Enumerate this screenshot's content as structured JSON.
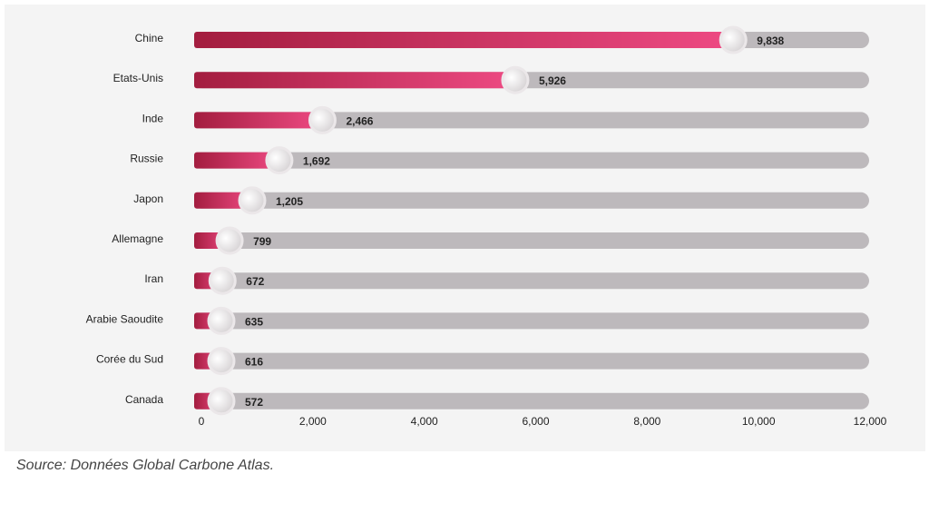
{
  "chart_data": {
    "type": "bar",
    "orientation": "horizontal",
    "categories": [
      "Chine",
      "Etats-Unis",
      "Inde",
      "Russie",
      "Japon",
      "Allemagne",
      "Iran",
      "Arabie Saoudite",
      "Corée du Sud",
      "Canada"
    ],
    "values": [
      9838,
      5926,
      2466,
      1692,
      1205,
      799,
      672,
      635,
      616,
      572
    ],
    "value_labels": [
      "9,838",
      "5,926",
      "2,466",
      "1,692",
      "1,205",
      "799",
      "672",
      "635",
      "616",
      "572"
    ],
    "xlim": [
      0,
      12000
    ],
    "xticks": [
      0,
      2000,
      4000,
      6000,
      8000,
      10000,
      12000
    ],
    "xtick_labels": [
      "0",
      "2,000",
      "4,000",
      "6,000",
      "8,000",
      "10,000",
      "12,000"
    ],
    "title": "",
    "xlabel": "",
    "ylabel": "",
    "grid": false,
    "colors": {
      "fill_start": "#a31d3f",
      "fill_end": "#ee4a83",
      "track": "#bdb9bc",
      "knob": "#f2f0f1",
      "label": "#222222"
    }
  },
  "source": "Source: Données Global Carbone Atlas."
}
